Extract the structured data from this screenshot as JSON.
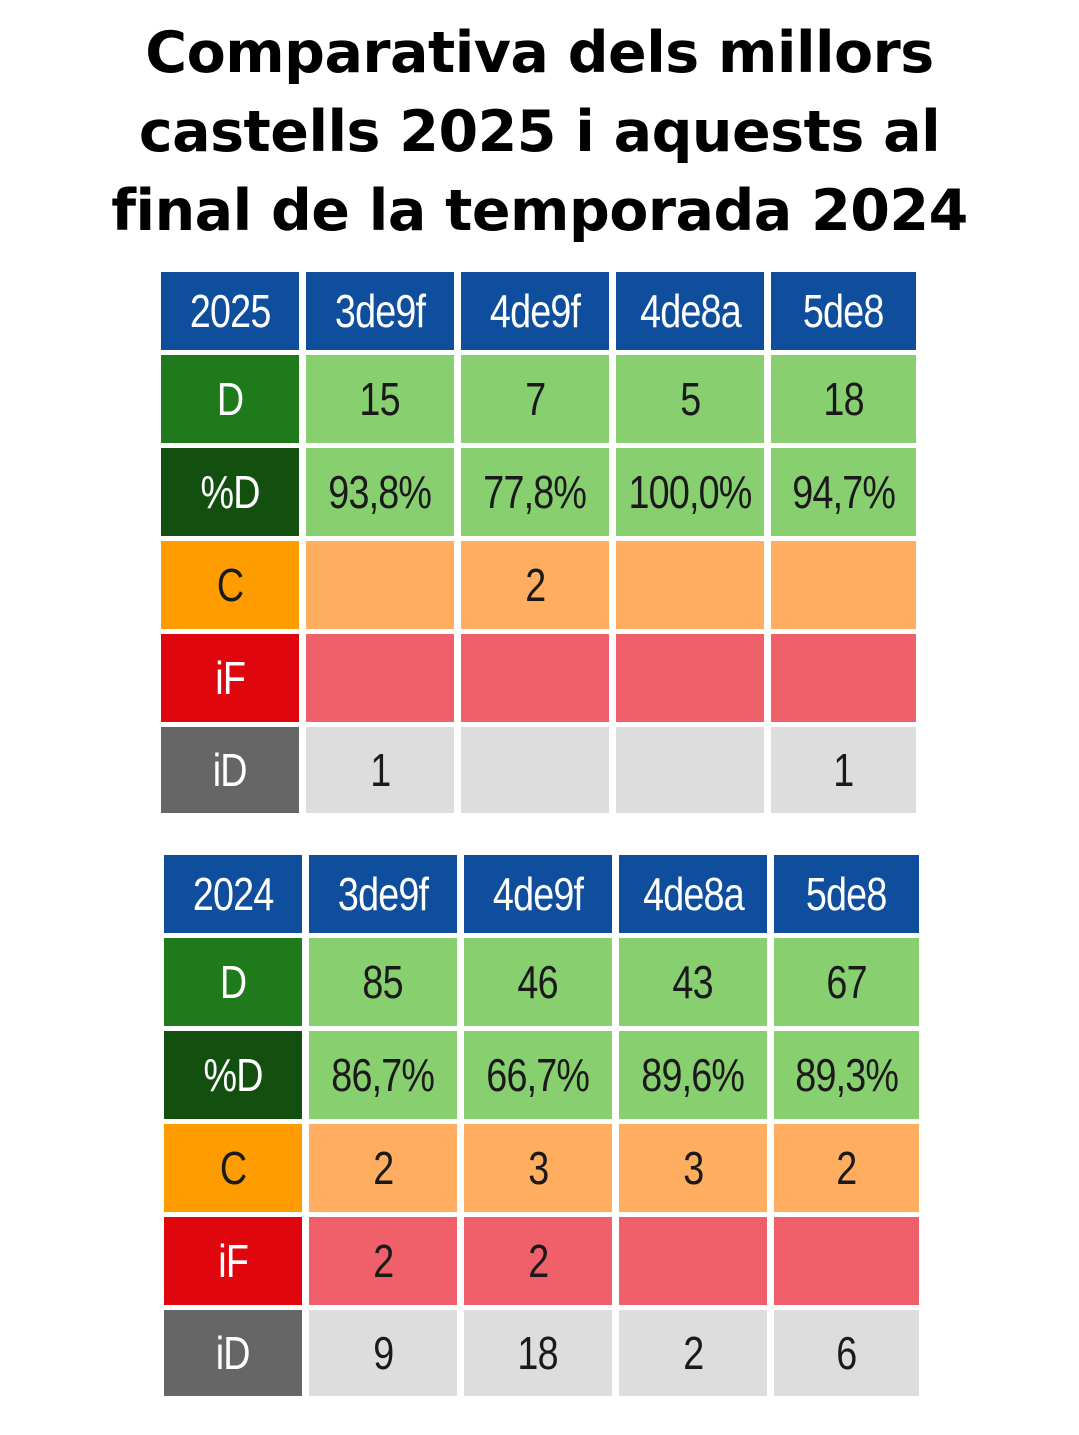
{
  "title": {
    "line1": "Comparativa dels millors",
    "line2": "castells 2025 i aquests al",
    "line3": "final de la temporada 2024"
  },
  "colors": {
    "header": "#0f4e9c",
    "D_label": "#1f7a1c",
    "pctD_label": "#13500f",
    "C_label": "#ff9c00",
    "iF_label": "#e0060e",
    "iD_label": "#666666",
    "D_values": "#88cf70",
    "C_values": "#ffad5e",
    "iF_values": "#f0606a",
    "iD_values": "#dddddd"
  },
  "chart_data": [
    {
      "type": "table",
      "year": "2025",
      "columns": [
        "3de9f",
        "4de9f",
        "4de8a",
        "5de8"
      ],
      "rows": [
        {
          "label": "D",
          "values": [
            "15",
            "7",
            "5",
            "18"
          ]
        },
        {
          "label": "%D",
          "values": [
            "93,8%",
            "77,8%",
            "100,0%",
            "94,7%"
          ]
        },
        {
          "label": "C",
          "values": [
            "",
            "2",
            "",
            ""
          ]
        },
        {
          "label": "iF",
          "values": [
            "",
            "",
            "",
            ""
          ]
        },
        {
          "label": "iD",
          "values": [
            "1",
            "",
            "",
            "1"
          ]
        }
      ]
    },
    {
      "type": "table",
      "year": "2024",
      "columns": [
        "3de9f",
        "4de9f",
        "4de8a",
        "5de8"
      ],
      "rows": [
        {
          "label": "D",
          "values": [
            "85",
            "46",
            "43",
            "67"
          ]
        },
        {
          "label": "%D",
          "values": [
            "86,7%",
            "66,7%",
            "89,6%",
            "89,3%"
          ]
        },
        {
          "label": "C",
          "values": [
            "2",
            "3",
            "3",
            "2"
          ]
        },
        {
          "label": "iF",
          "values": [
            "2",
            "2",
            "",
            ""
          ]
        },
        {
          "label": "iD",
          "values": [
            "9",
            "18",
            "2",
            "6"
          ]
        }
      ]
    }
  ]
}
